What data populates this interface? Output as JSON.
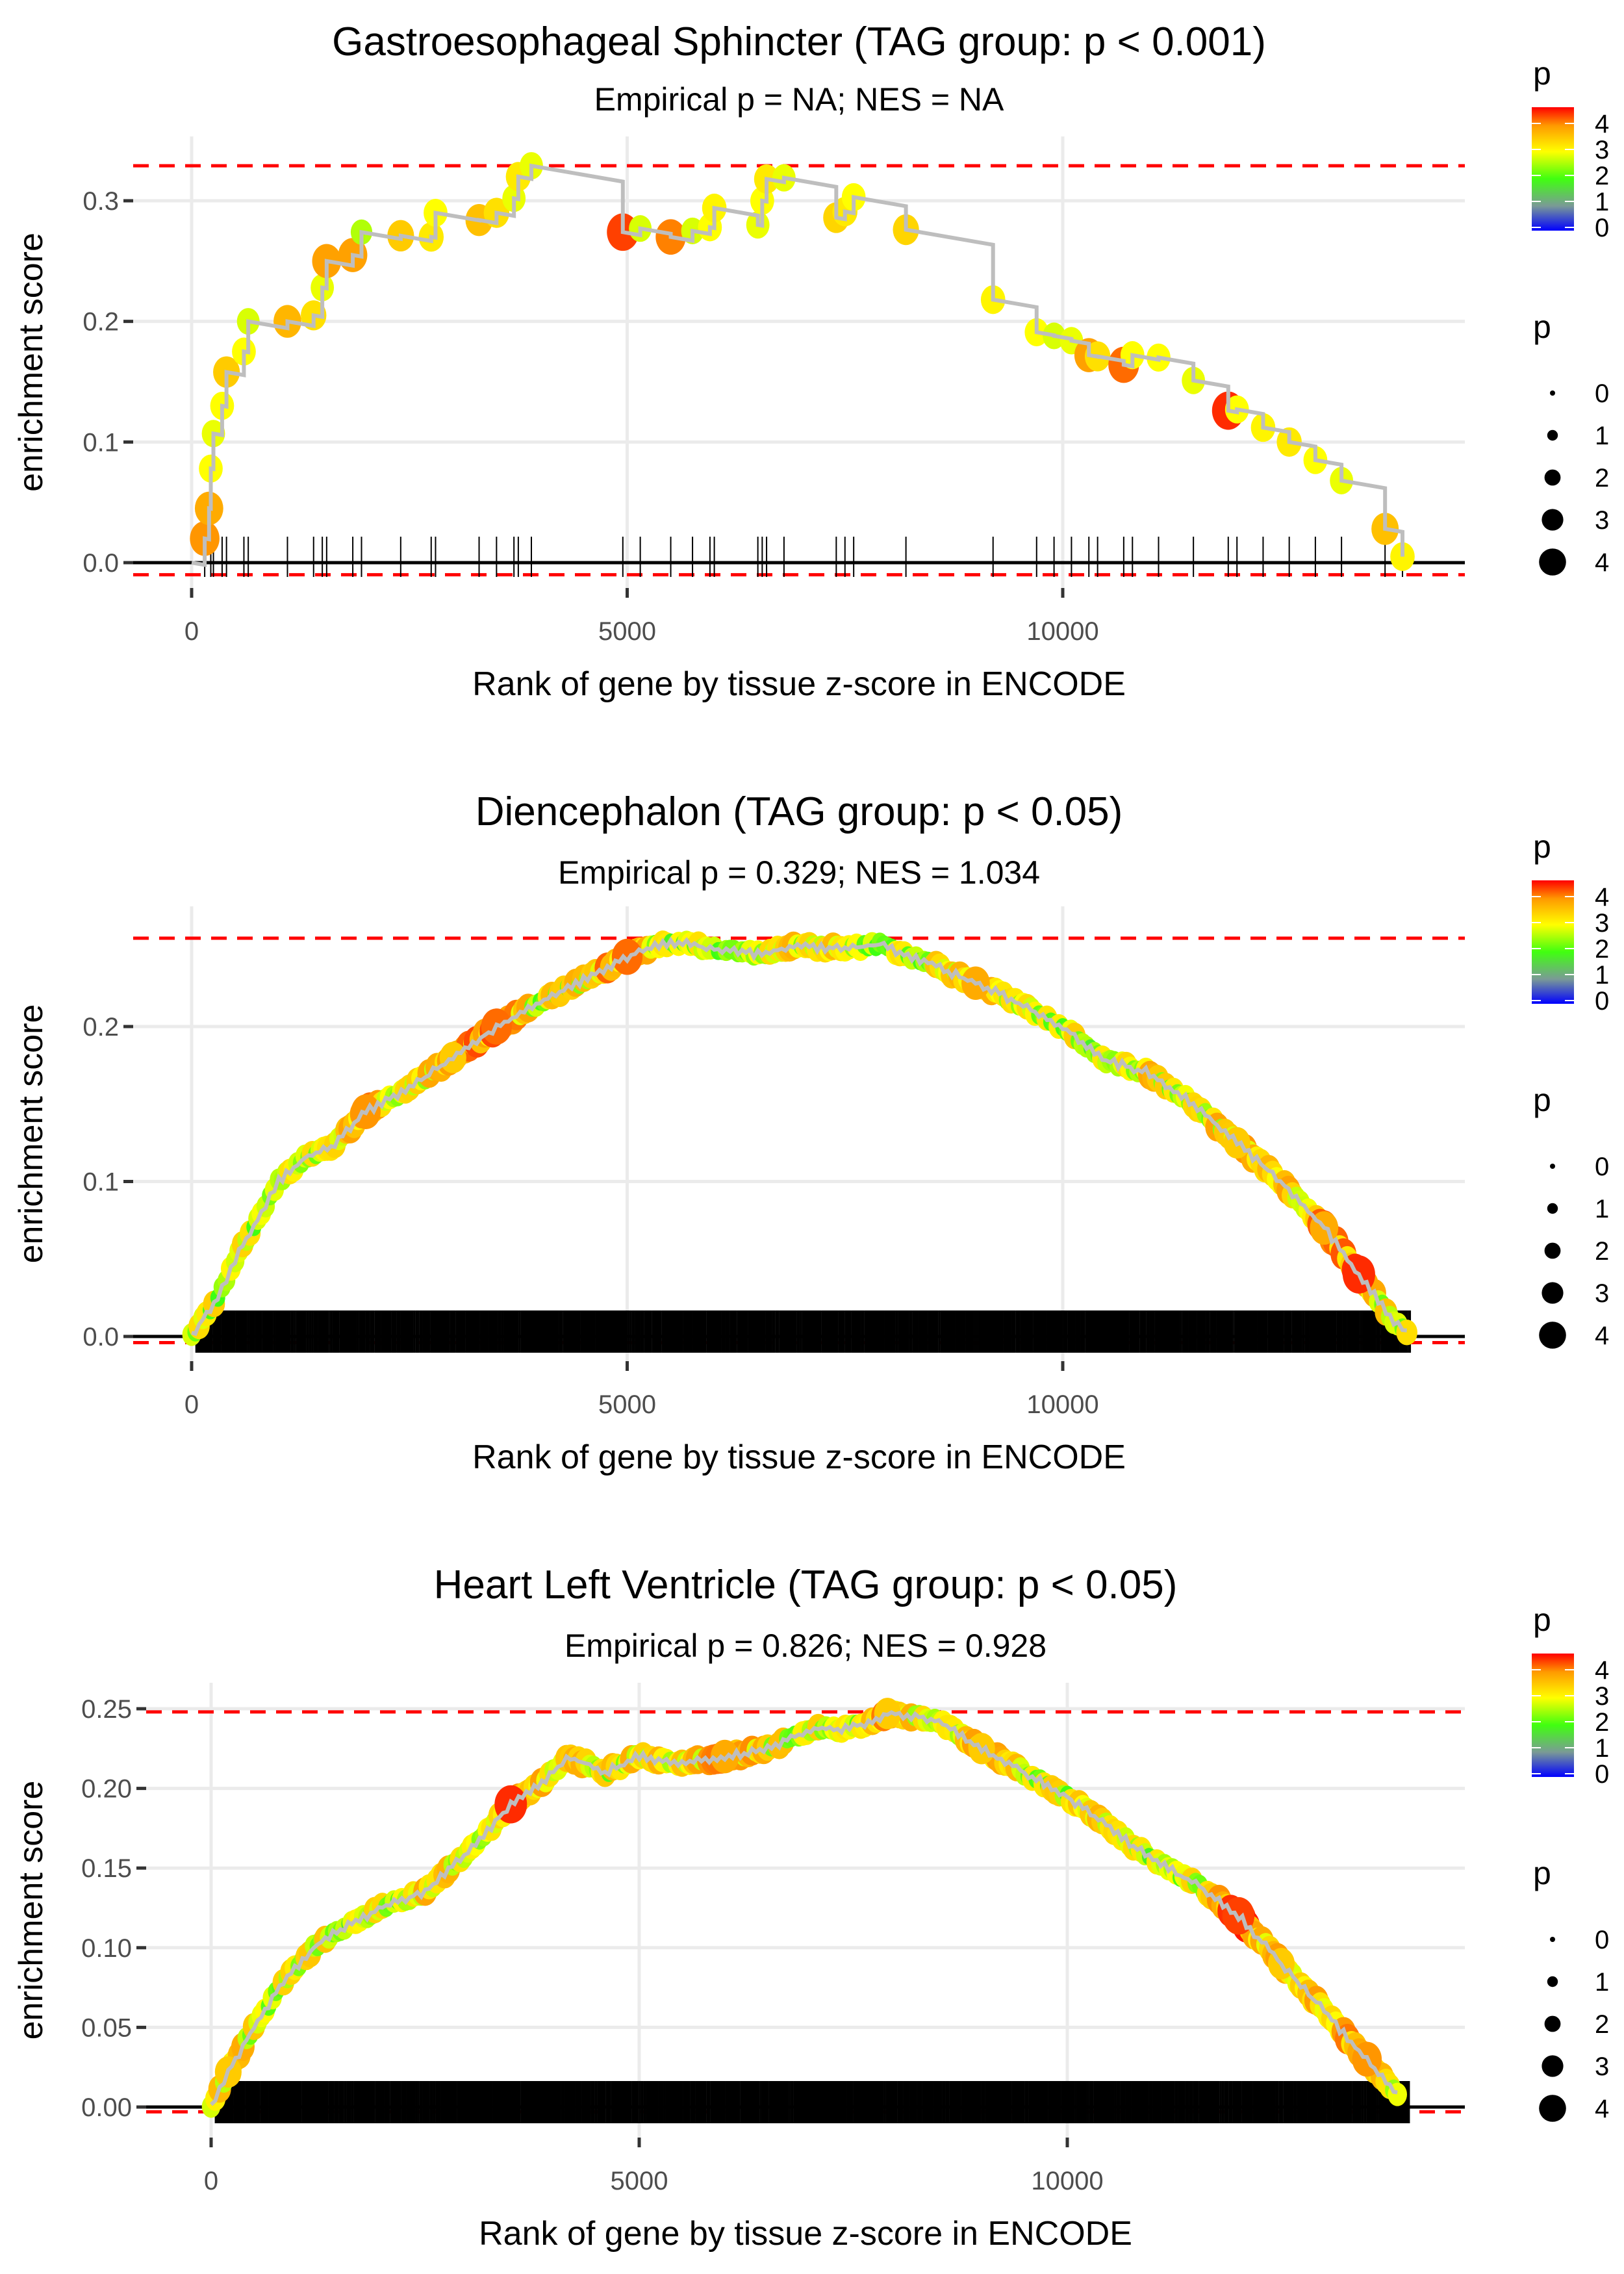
{
  "chart_data": [
    {
      "type": "line",
      "title": "Gastroesophageal Sphincter (TAG group: p < 0.001)",
      "subtitle": "Empirical p = NA; NES = NA",
      "xlabel": "Rank of gene by tissue z-score in ENCODE",
      "ylabel": "enrichment score",
      "xlim": [
        -700,
        14800
      ],
      "ylim": [
        -0.02,
        0.34
      ],
      "xticks": [
        0,
        5000,
        10000
      ],
      "xtick_labels": [
        "0",
        "5000",
        "10000"
      ],
      "yticks": [
        0.0,
        0.1,
        0.2,
        0.3
      ],
      "ytick_labels": [
        "0.0",
        "0.1",
        "0.2",
        "0.3"
      ],
      "max_dev_line": 0.329,
      "min_dev_line": -0.01,
      "grid": true,
      "series": [
        {
          "name": "running enrichment score",
          "points": [
            [
              150,
              0.02
            ],
            [
              200,
              0.045
            ],
            [
              220,
              0.078
            ],
            [
              250,
              0.107
            ],
            [
              350,
              0.13
            ],
            [
              400,
              0.158
            ],
            [
              600,
              0.175
            ],
            [
              650,
              0.2
            ],
            [
              1100,
              0.2
            ],
            [
              1400,
              0.205
            ],
            [
              1500,
              0.228
            ],
            [
              1550,
              0.25
            ],
            [
              1850,
              0.255
            ],
            [
              1950,
              0.274
            ],
            [
              2400,
              0.271
            ],
            [
              2750,
              0.27
            ],
            [
              2800,
              0.29
            ],
            [
              3300,
              0.284
            ],
            [
              3500,
              0.29
            ],
            [
              3700,
              0.302
            ],
            [
              3750,
              0.32
            ],
            [
              3900,
              0.329
            ],
            [
              4950,
              0.274
            ],
            [
              5150,
              0.277
            ],
            [
              5500,
              0.27
            ],
            [
              5750,
              0.275
            ],
            [
              5950,
              0.278
            ],
            [
              6000,
              0.294
            ],
            [
              6500,
              0.28
            ],
            [
              6550,
              0.3
            ],
            [
              6600,
              0.318
            ],
            [
              6800,
              0.319
            ],
            [
              7400,
              0.286
            ],
            [
              7500,
              0.291
            ],
            [
              7600,
              0.303
            ],
            [
              8200,
              0.276
            ],
            [
              9200,
              0.218
            ],
            [
              9700,
              0.191
            ],
            [
              9900,
              0.188
            ],
            [
              10100,
              0.184
            ],
            [
              10300,
              0.172
            ],
            [
              10400,
              0.171
            ],
            [
              10700,
              0.164
            ],
            [
              10800,
              0.172
            ],
            [
              11100,
              0.17
            ],
            [
              11500,
              0.151
            ],
            [
              11900,
              0.126
            ],
            [
              12000,
              0.127
            ],
            [
              12300,
              0.112
            ],
            [
              12600,
              0.1
            ],
            [
              12900,
              0.085
            ],
            [
              13200,
              0.068
            ],
            [
              13700,
              0.028
            ],
            [
              13900,
              0.005
            ]
          ],
          "p": [
            4,
            3.8,
            3,
            2.9,
            3,
            3.5,
            3,
            2.8,
            3.7,
            3.3,
            2.9,
            3.9,
            3.9,
            2.6,
            3.5,
            3.2,
            3,
            3.6,
            3.3,
            2.9,
            3.2,
            2.9,
            4.4,
            2.8,
            4.1,
            2.8,
            3,
            3.1,
            2.9,
            3,
            3.2,
            2.9,
            3.4,
            3.2,
            3,
            3.4,
            3.1,
            3,
            2.8,
            2.9,
            3.9,
            3.3,
            4.2,
            3,
            3,
            2.9,
            4.5,
            3,
            3.1,
            3.2,
            3,
            2.9,
            3.6,
            3.1
          ]
        }
      ],
      "hit_ranks": [
        150,
        220,
        250,
        350,
        400,
        600,
        650,
        1100,
        1400,
        1500,
        1550,
        1850,
        1950,
        2400,
        2750,
        2800,
        3300,
        3500,
        3700,
        3750,
        3900,
        4950,
        5150,
        5500,
        5750,
        5950,
        6000,
        6500,
        6550,
        6600,
        6800,
        7400,
        7500,
        7600,
        8200,
        9200,
        9700,
        9900,
        10100,
        10300,
        10400,
        10700,
        10800,
        11100,
        11500,
        11900,
        12000,
        12300,
        12600,
        12900,
        13200,
        13700,
        13900
      ],
      "legend": {
        "color_title": "p",
        "color_ticks": [
          "0",
          "1",
          "2",
          "3",
          "4"
        ],
        "size_title": "p",
        "size_ticks": [
          "0",
          "1",
          "2",
          "3",
          "4"
        ],
        "placement": "right"
      }
    },
    {
      "type": "line",
      "title": "Diencephalon (TAG group: p < 0.05)",
      "subtitle": "Empirical p = 0.329; NES = 1.034",
      "xlabel": "Rank of gene by tissue z-score in ENCODE",
      "ylabel": "enrichment score",
      "xlim": [
        -700,
        14800
      ],
      "ylim": [
        -0.015,
        0.265
      ],
      "xticks": [
        0,
        5000,
        10000
      ],
      "xtick_labels": [
        "0",
        "5000",
        "10000"
      ],
      "yticks": [
        0.0,
        0.1,
        0.2
      ],
      "ytick_labels": [
        "0.0",
        "0.1",
        "0.2"
      ],
      "max_dev_line": 0.257,
      "min_dev_line": -0.004,
      "grid": true,
      "series": [
        {
          "name": "running enrichment score",
          "points": [
            [
              0,
              0
            ],
            [
              300,
              0.025
            ],
            [
              500,
              0.05
            ],
            [
              800,
              0.08
            ],
            [
              1000,
              0.1
            ],
            [
              1300,
              0.115
            ],
            [
              1600,
              0.122
            ],
            [
              2000,
              0.145
            ],
            [
              2500,
              0.16
            ],
            [
              3000,
              0.18
            ],
            [
              3500,
              0.2
            ],
            [
              4000,
              0.215
            ],
            [
              4500,
              0.23
            ],
            [
              5000,
              0.245
            ],
            [
              5500,
              0.255
            ],
            [
              6000,
              0.25
            ],
            [
              6500,
              0.247
            ],
            [
              7000,
              0.252
            ],
            [
              7500,
              0.25
            ],
            [
              7900,
              0.253
            ],
            [
              8500,
              0.24
            ],
            [
              9000,
              0.228
            ],
            [
              9500,
              0.215
            ],
            [
              10000,
              0.2
            ],
            [
              10500,
              0.178
            ],
            [
              11000,
              0.17
            ],
            [
              11500,
              0.15
            ],
            [
              12000,
              0.125
            ],
            [
              12500,
              0.1
            ],
            [
              13000,
              0.07
            ],
            [
              13400,
              0.04
            ],
            [
              13800,
              0.01
            ],
            [
              14000,
              0.0
            ]
          ],
          "p": [
            2,
            2.5,
            3,
            2,
            2.5,
            2,
            3,
            4,
            2.5,
            3.5,
            4.2,
            2.5,
            3,
            4.2,
            2,
            2.5,
            2,
            3,
            2.5,
            2,
            2.5,
            3.8,
            2,
            2.5,
            2,
            3,
            2.5,
            3.5,
            3,
            3.8,
            4.5,
            2,
            3
          ]
        }
      ],
      "hit_density": "dense (~2000 genes spanning ranks 50-14000)",
      "legend": {
        "color_title": "p",
        "color_ticks": [
          "0",
          "1",
          "2",
          "3",
          "4"
        ],
        "size_title": "p",
        "size_ticks": [
          "0",
          "1",
          "2",
          "3",
          "4"
        ],
        "placement": "right"
      }
    },
    {
      "type": "line",
      "title": "Heart Left Ventricle (TAG group: p < 0.05)",
      "subtitle": "Empirical p = 0.826; NES = 0.928",
      "xlabel": "Rank of gene by tissue z-score in ENCODE",
      "ylabel": "enrichment score",
      "xlim": [
        -700,
        14800
      ],
      "ylim": [
        -0.008,
        0.255
      ],
      "xticks": [
        0,
        5000,
        10000
      ],
      "xtick_labels": [
        "0",
        "5000",
        "10000"
      ],
      "yticks": [
        0.0,
        0.05,
        0.1,
        0.15,
        0.2,
        0.25
      ],
      "ytick_labels": [
        "0.00",
        "0.05",
        "0.10",
        "0.15",
        "0.20",
        "0.25"
      ],
      "max_dev_line": 0.248,
      "min_dev_line": -0.003,
      "grid": true,
      "series": [
        {
          "name": "running enrichment score",
          "points": [
            [
              0,
              0
            ],
            [
              200,
              0.022
            ],
            [
              500,
              0.05
            ],
            [
              800,
              0.075
            ],
            [
              1200,
              0.1
            ],
            [
              1600,
              0.115
            ],
            [
              2000,
              0.125
            ],
            [
              2500,
              0.135
            ],
            [
              3000,
              0.16
            ],
            [
              3500,
              0.19
            ],
            [
              4000,
              0.21
            ],
            [
              4200,
              0.22
            ],
            [
              4600,
              0.21
            ],
            [
              5000,
              0.22
            ],
            [
              5500,
              0.215
            ],
            [
              6000,
              0.22
            ],
            [
              6500,
              0.225
            ],
            [
              7000,
              0.237
            ],
            [
              7500,
              0.238
            ],
            [
              7900,
              0.247
            ],
            [
              8500,
              0.243
            ],
            [
              9000,
              0.225
            ],
            [
              9500,
              0.21
            ],
            [
              10000,
              0.195
            ],
            [
              10500,
              0.175
            ],
            [
              11000,
              0.155
            ],
            [
              11500,
              0.14
            ],
            [
              12000,
              0.12
            ],
            [
              12500,
              0.09
            ],
            [
              13000,
              0.06
            ],
            [
              13500,
              0.03
            ],
            [
              13900,
              0.005
            ]
          ],
          "p": [
            2,
            3.5,
            2.5,
            2.5,
            3,
            2,
            2.5,
            3,
            2.5,
            4.5,
            3,
            3,
            2.5,
            3,
            2.5,
            3.8,
            3,
            2.5,
            2.5,
            3.5,
            3,
            3.5,
            2.5,
            2.5,
            3,
            2,
            2.5,
            4.4,
            3.5,
            3,
            4,
            3
          ]
        }
      ],
      "hit_density": "dense (~2000 genes spanning ranks 50-14000)",
      "legend": {
        "color_title": "p",
        "color_ticks": [
          "0",
          "1",
          "2",
          "3",
          "4"
        ],
        "size_title": "p",
        "size_ticks": [
          "0",
          "1",
          "2",
          "3",
          "4"
        ],
        "placement": "right"
      }
    }
  ],
  "colors": {
    "max_line": "#ff0000",
    "curve": "#bebebe",
    "grid": "#ebebeb",
    "hits": "#000000"
  }
}
